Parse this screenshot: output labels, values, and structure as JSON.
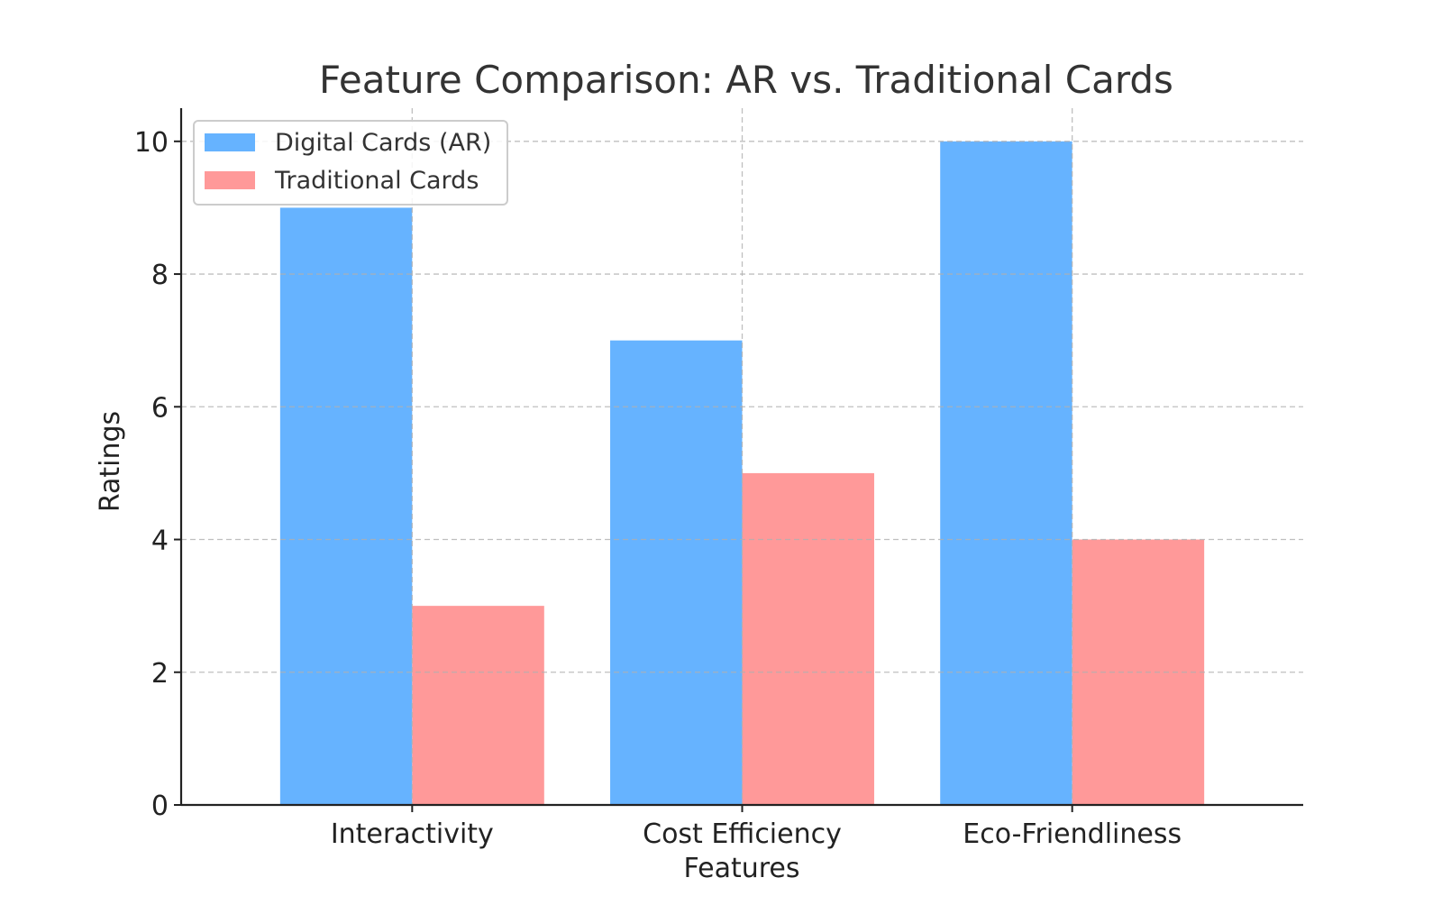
{
  "chart_data": {
    "type": "bar",
    "title": "Feature Comparison: AR vs. Traditional Cards",
    "xlabel": "Features",
    "ylabel": "Ratings",
    "categories": [
      "Interactivity",
      "Cost Efficiency",
      "Eco-Friendliness"
    ],
    "series": [
      {
        "name": "Digital Cards (AR)",
        "values": [
          9,
          7,
          10
        ],
        "color": "#66b3ff"
      },
      {
        "name": "Traditional Cards",
        "values": [
          3,
          5,
          4
        ],
        "color": "#ff9999"
      }
    ],
    "ylim": [
      0,
      10.5
    ],
    "yticks": [
      0,
      2,
      4,
      6,
      8,
      10
    ],
    "grid": true,
    "legend_position": "top-left"
  }
}
